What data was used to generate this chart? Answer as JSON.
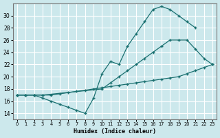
{
  "xlabel": "Humidex (Indice chaleur)",
  "bg_color": "#cce8ec",
  "grid_color": "#ffffff",
  "line_color": "#1a7070",
  "xlim": [
    -0.5,
    23.5
  ],
  "ylim": [
    13,
    32
  ],
  "xticks": [
    0,
    1,
    2,
    3,
    4,
    5,
    6,
    7,
    8,
    9,
    10,
    11,
    12,
    13,
    14,
    15,
    16,
    17,
    18,
    19,
    20,
    21,
    22,
    23
  ],
  "yticks": [
    14,
    16,
    18,
    20,
    22,
    24,
    26,
    28,
    30
  ],
  "line1": {
    "x": [
      0,
      1,
      2,
      3,
      4,
      5,
      6,
      7,
      8,
      9,
      10,
      11,
      12,
      13,
      14,
      15,
      16,
      17,
      18,
      19,
      20,
      21
    ],
    "y": [
      17,
      17,
      17,
      16.5,
      16,
      15.5,
      15,
      14.5,
      14,
      16.5,
      20.5,
      22.5,
      22,
      25,
      27,
      29,
      31,
      31.5,
      31,
      30,
      29,
      28
    ]
  },
  "line2": {
    "x": [
      0,
      1,
      2,
      3,
      10,
      11,
      12,
      13,
      14,
      15,
      16,
      17,
      18,
      19,
      20,
      21,
      22,
      23
    ],
    "y": [
      17,
      17,
      17,
      17,
      18,
      19,
      20,
      21,
      22,
      23,
      24,
      25,
      26,
      26,
      26,
      24.5,
      23,
      22
    ]
  },
  "line3": {
    "x": [
      0,
      1,
      2,
      3,
      4,
      5,
      6,
      7,
      8,
      9,
      10,
      11,
      12,
      13,
      14,
      15,
      16,
      17,
      18,
      19,
      20,
      21,
      22,
      23
    ],
    "y": [
      17,
      17,
      17,
      17,
      17,
      17.2,
      17.4,
      17.6,
      17.8,
      18,
      18.2,
      18.4,
      18.6,
      18.8,
      19,
      19.2,
      19.4,
      19.6,
      19.8,
      20,
      20.5,
      21,
      21.5,
      22
    ]
  }
}
